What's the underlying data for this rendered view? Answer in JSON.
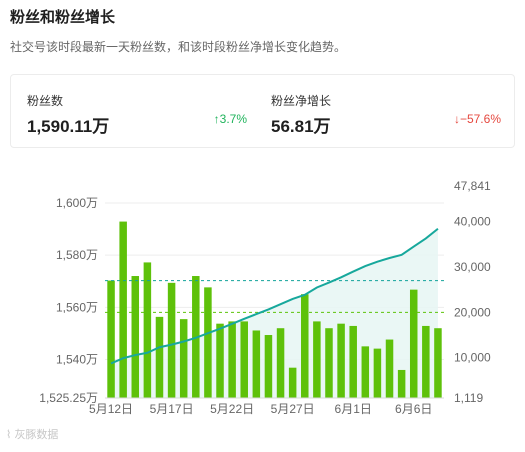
{
  "header": {
    "title": "粉丝和粉丝增长",
    "subtitle": "社交号该时段最新一天粉丝数，和该时段粉丝净增长变化趋势。"
  },
  "stats": [
    {
      "label": "粉丝数",
      "value": "1,590.11万",
      "change": "3.7%",
      "direction": "up",
      "arrow": "↑"
    },
    {
      "label": "粉丝净增长",
      "value": "56.81万",
      "change": "−57.6%",
      "direction": "down",
      "arrow": "↓"
    }
  ],
  "watermark": "灰豚数据",
  "chart_data": {
    "type": "bar+line",
    "categories": [
      "5月12日",
      "5月13日",
      "5月14日",
      "5月15日",
      "5月16日",
      "5月17日",
      "5月18日",
      "5月19日",
      "5月20日",
      "5月21日",
      "5月22日",
      "5月23日",
      "5月24日",
      "5月25日",
      "5月26日",
      "5月27日",
      "5月28日",
      "5月29日",
      "5月30日",
      "5月31日",
      "6月1日",
      "6月2日",
      "6月3日",
      "6月4日",
      "6月5日",
      "6月6日",
      "6月7日",
      "6月8日"
    ],
    "x_tick_labels": [
      "5月12日",
      "5月17日",
      "5月22日",
      "5月27日",
      "6月1日",
      "6月6日"
    ],
    "left_axis": {
      "ticks": [
        "1,600万",
        "1,580万",
        "1,560万",
        "1,540万",
        "1,525.25万"
      ],
      "ylim": [
        15252500,
        16065000
      ]
    },
    "right_axis": {
      "ticks": [
        "47,841",
        "40,000",
        "30,000",
        "20,000",
        "10,000",
        "1,119"
      ],
      "ylim": [
        1119,
        47841
      ]
    },
    "series": [
      {
        "kind": "bar",
        "axis": "right",
        "values": [
          27000,
          40000,
          28000,
          31000,
          19000,
          26500,
          18500,
          28000,
          25500,
          17500,
          18000,
          18000,
          16000,
          15000,
          16500,
          7800,
          24000,
          18000,
          16500,
          17500,
          17000,
          12500,
          12000,
          14000,
          7300,
          25000,
          17000,
          16500
        ]
      },
      {
        "kind": "line",
        "axis": "left",
        "values": [
          15385000,
          15405000,
          15417000,
          15426000,
          15447000,
          15457000,
          15469000,
          15483000,
          15501000,
          15518000,
          15537000,
          15556000,
          15574000,
          15592000,
          15612000,
          15632000,
          15648000,
          15676000,
          15695000,
          15715000,
          15737000,
          15758000,
          15775000,
          15789000,
          15801000,
          15833000,
          15864000,
          15901100
        ]
      }
    ],
    "reference_lines": [
      {
        "axis": "right",
        "value": 27000,
        "color": "#12a39b"
      },
      {
        "axis": "right",
        "value": 20000,
        "color": "#5cc40a"
      }
    ],
    "colors": {
      "bar": "#5ec10a",
      "line": "#17a89c",
      "area": "#e6f6f3",
      "grid": "#ededed",
      "axis_text": "#666666"
    },
    "grid": true
  }
}
